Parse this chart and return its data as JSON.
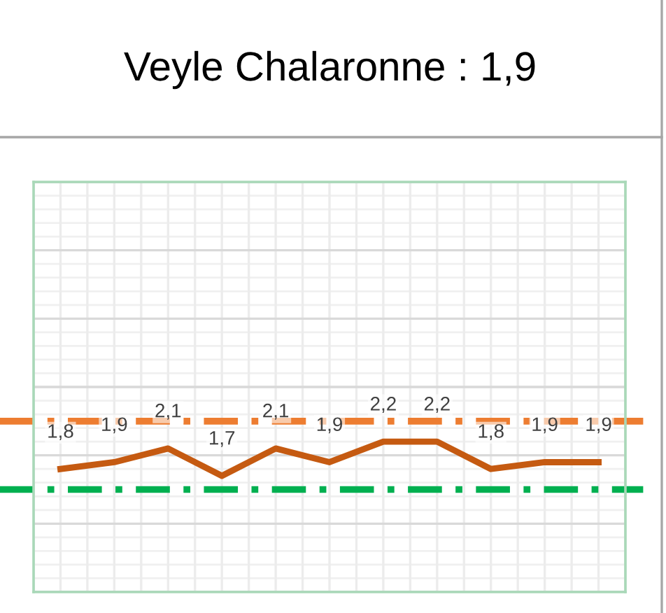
{
  "chart_data": {
    "type": "line",
    "title": "Veyle Chalaronne : 1,9",
    "categories": [
      null,
      null,
      null,
      null,
      null,
      null,
      null,
      null,
      null,
      null,
      null
    ],
    "series": [
      {
        "color": "#c55a11",
        "values": [
          1.8,
          1.9,
          2.1,
          1.7,
          2.1,
          1.9,
          2.2,
          2.2,
          1.8,
          1.9,
          1.9
        ],
        "value_labels": [
          "1,8",
          "1,9",
          "2,1",
          "1,7",
          "2,1",
          "1,9",
          "2,2",
          "2,2",
          "1,8",
          "1,9",
          "1,9"
        ]
      }
    ],
    "ylim": [
      0,
      6
    ],
    "yticks": [
      {
        "value": 0,
        "label": null
      },
      {
        "value": 1,
        "label": null
      },
      {
        "value": 2,
        "label": null
      },
      {
        "value": 3,
        "label": null
      },
      {
        "value": 4,
        "label": null
      },
      {
        "value": 5,
        "label": null
      },
      {
        "value": 6,
        "label": null
      }
    ],
    "grid": true,
    "marker": "none",
    "line_style": "solid",
    "ref_lines": [
      {
        "axis": "y",
        "value": 2.5,
        "color": "#ed7d31",
        "line_style": "dashdot"
      },
      {
        "axis": "y",
        "value": 1.5,
        "color": "#00b050",
        "line_style": "dashdot"
      }
    ]
  }
}
